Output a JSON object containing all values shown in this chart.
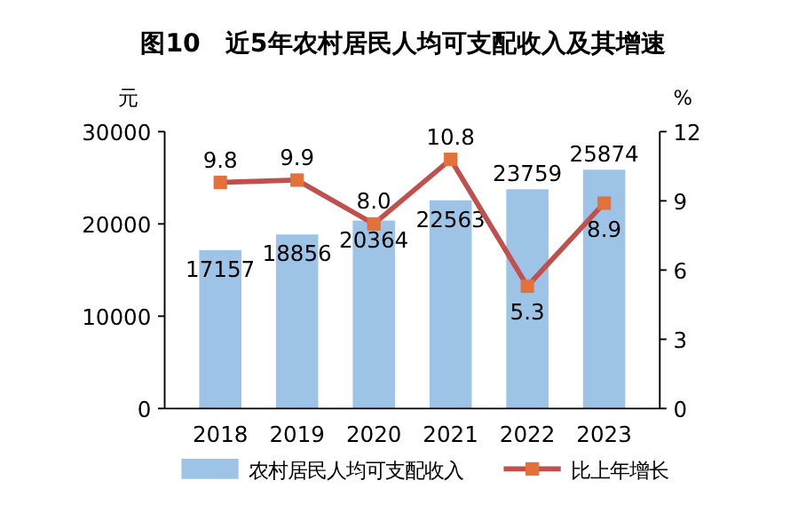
{
  "chart_data": {
    "type": "bar",
    "title": "图10　近5年农村居民人均可支配收入及其增速",
    "ylabel": "元",
    "y2label": "%",
    "categories": [
      "2018",
      "2019",
      "2020",
      "2021",
      "2022",
      "2023"
    ],
    "series": [
      {
        "name": "农村居民人均可支配收入",
        "color": "#9dc3e6",
        "values": [
          17157,
          18856,
          20364,
          22563,
          23759,
          25874
        ]
      },
      {
        "name": "比上年增长",
        "type": "line",
        "axis": "y2",
        "color": "#c0504d",
        "marker": "square",
        "values": [
          9.8,
          9.9,
          8.0,
          10.8,
          5.3,
          8.9
        ],
        "value_labels": [
          "9.8",
          "9.9",
          "8.0",
          "10.8",
          "5.3",
          "8.9"
        ]
      }
    ],
    "data_labels": true,
    "ylim": [
      0,
      30000
    ],
    "yticks": [
      0,
      10000,
      20000,
      30000
    ],
    "y2lim": [
      0,
      12
    ],
    "y2ticks": [
      0,
      3,
      6,
      9,
      12
    ],
    "grid": false,
    "legend": "bottom"
  }
}
